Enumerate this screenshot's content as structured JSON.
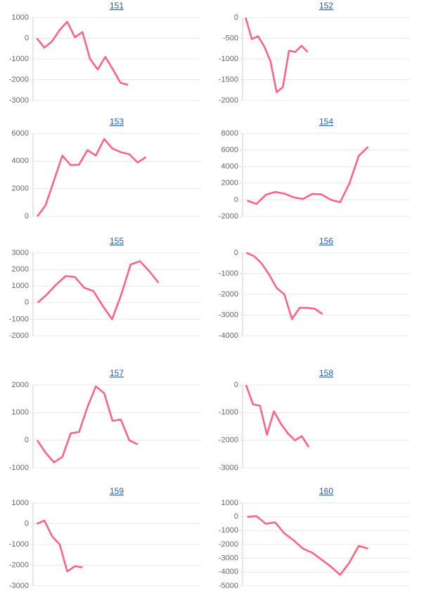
{
  "chart_data": [
    {
      "type": "line",
      "title": "151",
      "color": "#ff6384",
      "grid": true,
      "categories": [
        null,
        null,
        null,
        null,
        null,
        null,
        null,
        null,
        null,
        null,
        null,
        null,
        null,
        null,
        null,
        null,
        null,
        null,
        null,
        null,
        null,
        null
      ],
      "values": [
        0,
        -450,
        -150,
        400,
        800,
        50,
        300,
        -1000,
        -1500,
        -900,
        -1500,
        -2150,
        -2250,
        null,
        null,
        null,
        null,
        null,
        null,
        null,
        null,
        null
      ],
      "ylim": [
        -3000,
        1000
      ],
      "yticks": [
        -3000,
        -2000,
        -1000,
        0,
        1000
      ]
    },
    {
      "type": "line",
      "title": "152",
      "color": "#ff6384",
      "grid": true,
      "categories": [
        null,
        null,
        null,
        null,
        null,
        null,
        null,
        null,
        null,
        null,
        null,
        null,
        null,
        null,
        null,
        null,
        null,
        null,
        null,
        null,
        null,
        null,
        null,
        null,
        null,
        null,
        null
      ],
      "values": [
        0,
        -520,
        -450,
        -700,
        -1050,
        -1800,
        -1680,
        -800,
        -830,
        -680,
        -830,
        null,
        null,
        null,
        null,
        null,
        null,
        null,
        null,
        null,
        null,
        null,
        null,
        null,
        null,
        null,
        null
      ],
      "ylim": [
        -2000,
        0
      ],
      "yticks": [
        -2000,
        -1500,
        -1000,
        -500,
        0
      ]
    },
    {
      "type": "line",
      "title": "153",
      "color": "#ff6384",
      "grid": true,
      "categories": [
        null,
        null,
        null,
        null,
        null,
        null,
        null,
        null,
        null,
        null,
        null,
        null,
        null,
        null,
        null,
        null,
        null,
        null,
        null,
        null
      ],
      "values": [
        0,
        800,
        2600,
        4400,
        3700,
        3750,
        4800,
        4400,
        5600,
        4900,
        4650,
        4500,
        3900,
        4300,
        null,
        null,
        null,
        null,
        null,
        null
      ],
      "ylim": [
        0,
        6000
      ],
      "yticks": [
        0,
        2000,
        4000,
        6000
      ]
    },
    {
      "type": "line",
      "title": "154",
      "color": "#ff6384",
      "grid": true,
      "categories": [
        null,
        null,
        null,
        null,
        null,
        null,
        null,
        null,
        null,
        null,
        null,
        null,
        null,
        null,
        null,
        null,
        null,
        null
      ],
      "values": [
        -100,
        -500,
        600,
        950,
        750,
        300,
        100,
        700,
        650,
        0,
        -300,
        2000,
        5300,
        6400,
        null,
        null,
        null,
        null
      ],
      "ylim": [
        -2000,
        8000
      ],
      "yticks": [
        -2000,
        0,
        2000,
        4000,
        6000,
        8000
      ]
    },
    {
      "type": "line",
      "title": "155",
      "color": "#ff6384",
      "grid": true,
      "categories": [
        null,
        null,
        null,
        null,
        null,
        null,
        null,
        null,
        null,
        null,
        null,
        null,
        null,
        null,
        null,
        null,
        null,
        null
      ],
      "values": [
        0,
        500,
        1100,
        1600,
        1550,
        900,
        700,
        -200,
        -1000,
        500,
        2300,
        2500,
        1900,
        1200,
        null,
        null,
        null,
        null
      ],
      "ylim": [
        -2000,
        3000
      ],
      "yticks": [
        -2000,
        -1000,
        0,
        1000,
        2000,
        3000
      ]
    },
    {
      "type": "line",
      "title": "156",
      "color": "#ff6384",
      "grid": true,
      "categories": [
        null,
        null,
        null,
        null,
        null,
        null,
        null,
        null,
        null,
        null,
        null,
        null,
        null,
        null,
        null,
        null,
        null,
        null,
        null,
        null,
        null,
        null
      ],
      "values": [
        0,
        -150,
        -500,
        -1050,
        -1700,
        -2000,
        -3200,
        -2650,
        -2650,
        -2700,
        -2950,
        null,
        null,
        null,
        null,
        null,
        null,
        null,
        null,
        null,
        null,
        null
      ],
      "ylim": [
        -4000,
        0
      ],
      "yticks": [
        -4000,
        -3000,
        -2000,
        -1000,
        0
      ]
    },
    {
      "type": "line",
      "title": "157",
      "color": "#ff6384",
      "grid": true,
      "categories": [
        null,
        null,
        null,
        null,
        null,
        null,
        null,
        null,
        null,
        null,
        null,
        null,
        null,
        null,
        null,
        null,
        null,
        null,
        null,
        null
      ],
      "values": [
        0,
        -450,
        -800,
        -600,
        250,
        300,
        1200,
        1950,
        1700,
        700,
        750,
        0,
        -150,
        null,
        null,
        null,
        null,
        null,
        null,
        null
      ],
      "ylim": [
        -1000,
        2000
      ],
      "yticks": [
        -1000,
        0,
        1000,
        2000
      ]
    },
    {
      "type": "line",
      "title": "158",
      "color": "#ff6384",
      "grid": true,
      "categories": [
        null,
        null,
        null,
        null,
        null,
        null,
        null,
        null,
        null,
        null,
        null,
        null,
        null,
        null,
        null,
        null,
        null,
        null,
        null,
        null,
        null,
        null,
        null,
        null
      ],
      "values": [
        0,
        -700,
        -750,
        -1800,
        -950,
        -1400,
        -1750,
        -2000,
        -1850,
        -2250,
        null,
        null,
        null,
        null,
        null,
        null,
        null,
        null,
        null,
        null,
        null,
        null,
        null,
        null
      ],
      "ylim": [
        -3000,
        0
      ],
      "yticks": [
        -3000,
        -2000,
        -1000,
        0
      ]
    },
    {
      "type": "line",
      "title": "159",
      "color": "#ff6384",
      "grid": true,
      "categories": [
        null,
        null,
        null,
        null,
        null,
        null,
        null,
        null,
        null,
        null,
        null,
        null,
        null,
        null,
        null,
        null,
        null,
        null,
        null,
        null,
        null,
        null
      ],
      "values": [
        0,
        150,
        -600,
        -1000,
        -2300,
        -2050,
        -2100,
        null,
        null,
        null,
        null,
        null,
        null,
        null,
        null,
        null,
        null,
        null,
        null,
        null,
        null,
        null
      ],
      "ylim": [
        -3000,
        1000
      ],
      "yticks": [
        -3000,
        -2000,
        -1000,
        0,
        1000
      ]
    },
    {
      "type": "line",
      "title": "160",
      "color": "#ff6384",
      "grid": true,
      "categories": [
        null,
        null,
        null,
        null,
        null,
        null,
        null,
        null,
        null,
        null,
        null,
        null,
        null,
        null,
        null,
        null,
        null,
        null
      ],
      "values": [
        0,
        50,
        -500,
        -400,
        -1200,
        -1700,
        -2300,
        -2600,
        -3100,
        -3600,
        -4200,
        -3300,
        -2100,
        -2300,
        null,
        null,
        null,
        null
      ],
      "ylim": [
        -5000,
        1000
      ],
      "yticks": [
        -5000,
        -4000,
        -3000,
        -2000,
        -1000,
        0,
        1000
      ]
    }
  ]
}
